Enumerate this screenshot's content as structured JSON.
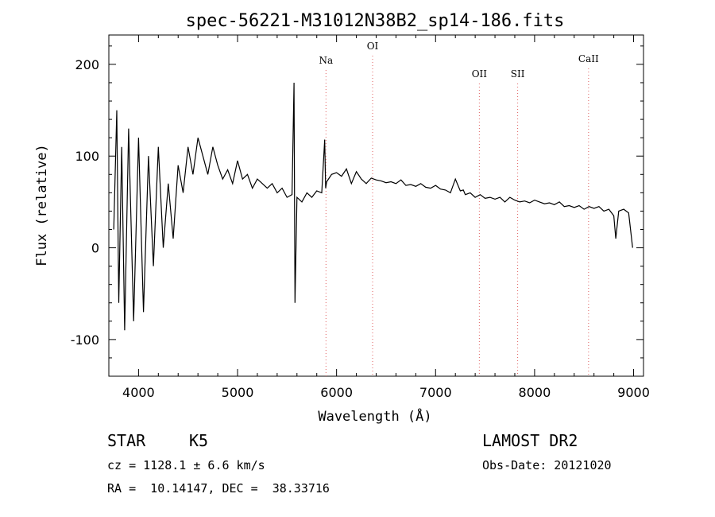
{
  "chart_data": {
    "type": "line",
    "title": "spec-56221-M31012N38B2_sp14-186.fits",
    "xlabel": "Wavelength (Å)",
    "ylabel": "Flux (relative)",
    "xlim": [
      3700,
      9100
    ],
    "ylim": [
      -140,
      232
    ],
    "xticks": [
      4000,
      5000,
      6000,
      7000,
      8000,
      9000
    ],
    "yticks": [
      -100,
      0,
      100,
      200
    ],
    "grid": false,
    "line_color": "#000000",
    "series": [
      {
        "values_x": [
          3750,
          3780,
          3800,
          3830,
          3860,
          3900,
          3950,
          4000,
          4050,
          4100,
          4150,
          4200,
          4250,
          4300,
          4350,
          4400,
          4450,
          4500,
          4550,
          4600,
          4650,
          4700,
          4750,
          4800,
          4850,
          4900,
          4950,
          5000,
          5050,
          5100,
          5150,
          5200,
          5250,
          5300,
          5350,
          5400,
          5450,
          5500,
          5550,
          5570,
          5580,
          5600,
          5650,
          5700,
          5750,
          5800,
          5850,
          5880,
          5890,
          5900,
          5950,
          6000,
          6050,
          6100,
          6150,
          6200,
          6250,
          6300,
          6350,
          6400,
          6450,
          6500,
          6550,
          6600,
          6650,
          6700,
          6750,
          6800,
          6850,
          6900,
          6950,
          7000,
          7050,
          7100,
          7150,
          7200,
          7250,
          7280,
          7300,
          7350,
          7400,
          7450,
          7500,
          7550,
          7600,
          7650,
          7700,
          7750,
          7800,
          7850,
          7900,
          7950,
          8000,
          8050,
          8100,
          8150,
          8200,
          8250,
          8300,
          8350,
          8400,
          8450,
          8500,
          8550,
          8600,
          8650,
          8700,
          8750,
          8800,
          8820,
          8850,
          8900,
          8950,
          8990
        ],
        "values_y": [
          20,
          150,
          -60,
          110,
          -90,
          130,
          -80,
          120,
          -70,
          100,
          -20,
          110,
          0,
          70,
          10,
          90,
          60,
          110,
          80,
          120,
          100,
          80,
          110,
          90,
          75,
          85,
          70,
          95,
          75,
          80,
          65,
          75,
          70,
          65,
          70,
          60,
          65,
          55,
          58,
          180,
          -60,
          55,
          50,
          60,
          55,
          62,
          60,
          118,
          65,
          72,
          80,
          82,
          78,
          86,
          70,
          83,
          75,
          70,
          76,
          74,
          73,
          71,
          72,
          70,
          74,
          68,
          69,
          67,
          70,
          66,
          65,
          68,
          64,
          63,
          60,
          75,
          62,
          63,
          58,
          60,
          55,
          58,
          54,
          55,
          53,
          55,
          50,
          55,
          52,
          50,
          51,
          49,
          52,
          50,
          48,
          49,
          47,
          50,
          45,
          46,
          44,
          46,
          42,
          45,
          43,
          45,
          40,
          42,
          35,
          10,
          40,
          42,
          38,
          0
        ]
      }
    ],
    "lines": [
      {
        "label": "Na",
        "x": 5893
      },
      {
        "label": "OI",
        "x": 6364
      },
      {
        "label": "OII",
        "x": 7442
      },
      {
        "label": "SII",
        "x": 7829
      },
      {
        "label": "CaII",
        "x": 8545
      }
    ],
    "line_marker_color": "#e06060"
  },
  "info": {
    "object_class": "STAR",
    "subclass": "K5",
    "survey": "LAMOST DR2",
    "cz": "cz = 1128.1 ± 6.6 km/s",
    "obs_date": "Obs-Date: 20121020",
    "coords": "RA =  10.14147, DEC =  38.33716"
  }
}
